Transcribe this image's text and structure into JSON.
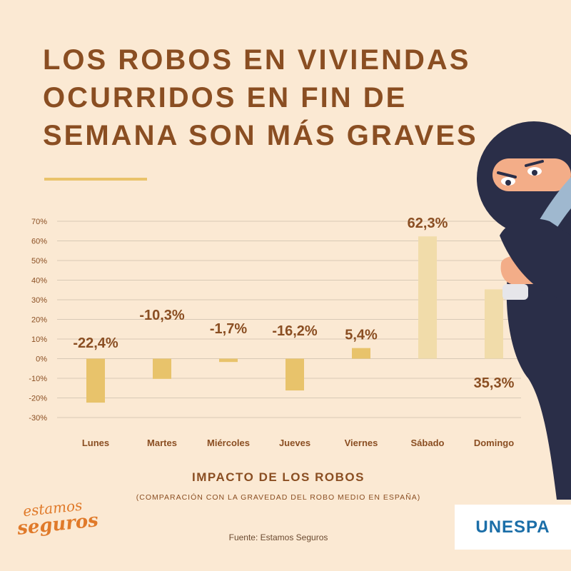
{
  "title": "LOS ROBOS EN VIVIENDAS OCURRIDOS EN FIN DE SEMANA SON MÁS GRAVES",
  "colors": {
    "background": "#fbe9d3",
    "title": "#8a4e22",
    "accent_rule": "#eac36a",
    "bar_weekday": "#e8c36b",
    "bar_weekend": "#f1dcaa",
    "thief_hood": "#2a2e48",
    "knife": "#9fb8cf"
  },
  "chart_data": {
    "type": "bar",
    "categories": [
      "Lunes",
      "Martes",
      "Miércoles",
      "Jueves",
      "Viernes",
      "Sábado",
      "Domingo"
    ],
    "values": [
      -22.4,
      -10.3,
      -1.7,
      -16.2,
      5.4,
      62.3,
      35.3
    ],
    "data_labels": [
      "-22,4%",
      "-10,3%",
      "-1,7%",
      "-16,2%",
      "5,4%",
      "62,3%",
      "35,3%"
    ],
    "ylim": [
      -30,
      70
    ],
    "yticks": [
      -30,
      -20,
      -10,
      0,
      10,
      20,
      30,
      40,
      50,
      60,
      70
    ],
    "ytick_labels": [
      "-30%",
      "-20%",
      "-10%",
      "0%",
      "10%",
      "20%",
      "30%",
      "40%",
      "50%",
      "60%",
      "70%"
    ],
    "grid": true,
    "xlabel": "IMPACTO DE LOS ROBOS",
    "subtitle": "(COMPARACIÓN CON LA GRAVEDAD DEL ROBO MEDIO EN ESPAÑA)"
  },
  "source": "Fuente: Estamos Seguros",
  "logos": {
    "estamos_seguros": "Estamos Seguros",
    "unespa": "UNESPA"
  },
  "illustration": "masked-thief-with-knife"
}
